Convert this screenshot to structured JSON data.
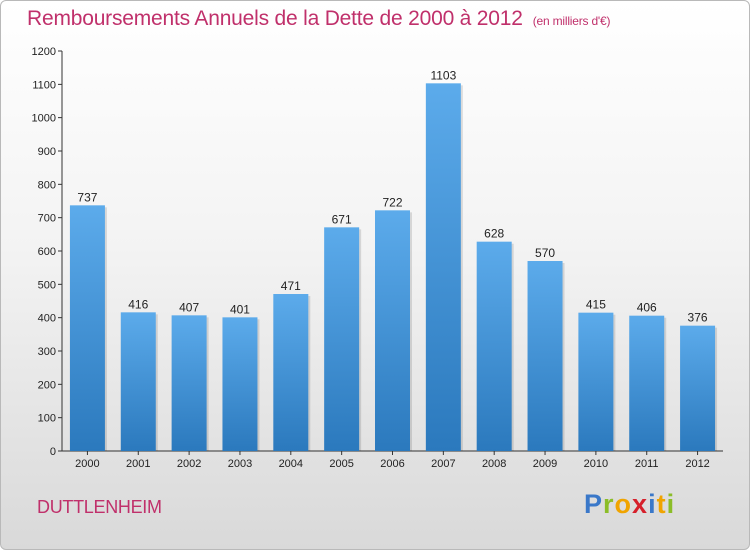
{
  "title": "Remboursements Annuels de la Dette de 2000 à 2012",
  "unit_note": "(en milliers d'€)",
  "commune": "DUTTLENHEIM",
  "brand": {
    "letters": [
      "P",
      "r",
      "o",
      "x",
      "i",
      "t",
      "i"
    ],
    "colors": [
      "#3a78c9",
      "#8bbd28",
      "#f0a400",
      "#d6202b",
      "#3a78c9",
      "#f0a400",
      "#8bbd28"
    ]
  },
  "colors": {
    "bar_top": "#5cabeb",
    "bar_bottom": "#2b79bd",
    "title": "#c0306b"
  },
  "chart_data": {
    "type": "bar",
    "title": "Remboursements Annuels de la Dette de 2000 à 2012",
    "subtitle": "(en milliers d'€)",
    "xlabel": "",
    "ylabel": "",
    "categories": [
      "2000",
      "2001",
      "2002",
      "2003",
      "2004",
      "2005",
      "2006",
      "2007",
      "2008",
      "2009",
      "2010",
      "2011",
      "2012"
    ],
    "values": [
      737,
      416,
      407,
      401,
      471,
      671,
      722,
      1103,
      628,
      570,
      415,
      406,
      376
    ],
    "ylim": [
      0,
      1200
    ],
    "yticks": [
      0,
      100,
      200,
      300,
      400,
      500,
      600,
      700,
      800,
      900,
      1000,
      1100,
      1200
    ],
    "grid": false,
    "data_labels": true
  }
}
